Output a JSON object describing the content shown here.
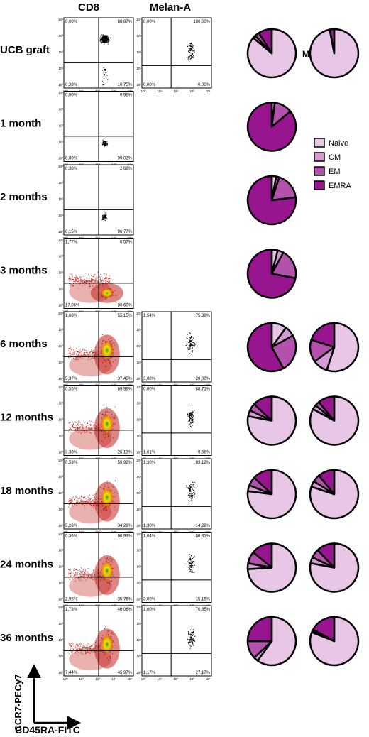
{
  "column_headers": {
    "cd8": "CD8",
    "melan": "Melan-A"
  },
  "axis_labels": {
    "y": "CCR7-PECy7",
    "x": "CD45RA-FITC"
  },
  "colors": {
    "naive": "#e8c6e6",
    "cm": "#d69ad3",
    "em": "#b352ad",
    "emra": "#97158f",
    "density_low": "#c4211b",
    "density_mid": "#f0b400",
    "density_high": "#1a9a3a"
  },
  "chart_data": {
    "type": "scatter",
    "xlabel": "CD45RA-FITC",
    "ylabel": "CCR7-PECy7",
    "axis_tick_labels": [
      "10⁰",
      "10¹",
      "10²",
      "10³",
      "10⁴"
    ],
    "legend": {
      "placement": "right",
      "entries": [
        {
          "key": "naive",
          "label": "Naive"
        },
        {
          "key": "cm",
          "label": "CM"
        },
        {
          "key": "em",
          "label": "EM"
        },
        {
          "key": "emra",
          "label": "EMRA"
        }
      ]
    },
    "pie_overlay_text": "M",
    "rows": [
      {
        "label": "UCB graft",
        "cd8_plot": "sparse",
        "cd8_quadrants": [
          "0,00%",
          "88,87%",
          "0,38%",
          "10,75%"
        ],
        "melan_quadrants": [
          "0,00%",
          "100,00%",
          "0,00%",
          "0,00%"
        ],
        "pies": [
          [
            0.86,
            0.02,
            0.03,
            0.09
          ],
          [
            0.97,
            0.0,
            0.0,
            0.03
          ]
        ]
      },
      {
        "label": "1 month",
        "cd8_plot": "sparse",
        "cd8_quadrants": [
          "0,00%",
          "0,96%",
          "0,00%",
          "99,02%"
        ],
        "melan_quadrants": null,
        "pies": [
          [
            0.0,
            0.02,
            0.12,
            0.86
          ]
        ]
      },
      {
        "label": "2 months",
        "cd8_plot": "sparse",
        "cd8_quadrants": [
          "0,38%",
          "2,68%",
          "0,15%",
          "96,77%"
        ],
        "melan_quadrants": null,
        "pies": [
          [
            0.03,
            0.02,
            0.18,
            0.77
          ]
        ]
      },
      {
        "label": "3 months",
        "cd8_plot": "dense",
        "cd8_quadrants": [
          "1,77%",
          "0,57%",
          "17,06%",
          "80,60%"
        ],
        "melan_quadrants": null,
        "pies": [
          [
            0.04,
            0.04,
            0.2,
            0.72
          ]
        ]
      },
      {
        "label": "6 months",
        "cd8_plot": "dense",
        "cd8_quadrants": [
          "1,68%",
          "55,15%",
          "5,37%",
          "37,45%"
        ],
        "melan_quadrants": [
          "1,54%",
          "75,38%",
          "3,08%",
          "20,00%"
        ],
        "pies": [
          [
            0.1,
            0.07,
            0.25,
            0.58
          ],
          [
            0.55,
            0.1,
            0.15,
            0.2
          ]
        ]
      },
      {
        "label": "12 months",
        "cd8_plot": "dense",
        "cd8_quadrants": [
          "0,55%",
          "69,99%",
          "3,33%",
          "26,13%"
        ],
        "melan_quadrants": [
          "0,00%",
          "88,71%",
          "1,61%",
          "9,68%"
        ],
        "pies": [
          [
            0.78,
            0.04,
            0.05,
            0.13
          ],
          [
            0.83,
            0.03,
            0.03,
            0.11
          ]
        ]
      },
      {
        "label": "18 months",
        "cd8_plot": "dense",
        "cd8_quadrants": [
          "0,53%",
          "59,92%",
          "5,26%",
          "34,29%"
        ],
        "melan_quadrants": [
          "1,30%",
          "83,12%",
          "1,30%",
          "14,29%"
        ],
        "pies": [
          [
            0.77,
            0.04,
            0.06,
            0.13
          ],
          [
            0.8,
            0.04,
            0.05,
            0.11
          ]
        ]
      },
      {
        "label": "24 months",
        "cd8_plot": "dense",
        "cd8_quadrants": [
          "0,36%",
          "60,93%",
          "2,95%",
          "35,76%"
        ],
        "melan_quadrants": [
          "1,04%",
          "80,81%",
          "3,00%",
          "15,15%"
        ],
        "pies": [
          [
            0.74,
            0.04,
            0.08,
            0.14
          ],
          [
            0.78,
            0.04,
            0.06,
            0.12
          ]
        ]
      },
      {
        "label": "36 months",
        "cd8_plot": "dense",
        "cd8_quadrants": [
          "1,73%",
          "46,06%",
          "7,44%",
          "45,97%"
        ],
        "melan_quadrants": [
          "1,00%",
          "70,65%",
          "1,17%",
          "27,17%"
        ],
        "pies": [
          [
            0.6,
            0.03,
            0.12,
            0.25
          ],
          [
            0.81,
            0.01,
            0.01,
            0.17
          ]
        ]
      }
    ]
  }
}
